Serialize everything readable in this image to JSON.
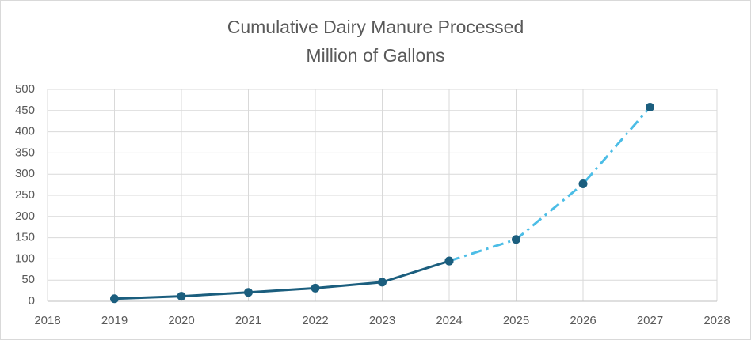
{
  "chart_data": {
    "type": "line",
    "title": "Cumulative Dairy Manure Processed",
    "subtitle": "Million of Gallons",
    "series": [
      {
        "x": [
          2019,
          2020,
          2021,
          2022,
          2023,
          2024
        ],
        "values": [
          6,
          12,
          21,
          31,
          45,
          95
        ],
        "color": "#1b5e7e",
        "marker_color": "#1b5e7e",
        "dash": "solid"
      },
      {
        "x": [
          2024,
          2025,
          2026,
          2027
        ],
        "values": [
          95,
          146,
          277,
          458
        ],
        "color": "#4cbde6",
        "marker_color": "#1b5e7e",
        "dash": "dash-dot"
      }
    ],
    "xlim": [
      2018,
      2028
    ],
    "xticks": [
      2018,
      2019,
      2020,
      2021,
      2022,
      2023,
      2024,
      2025,
      2026,
      2027,
      2028
    ],
    "ylim": [
      0,
      500
    ],
    "yticks": [
      0,
      50,
      100,
      150,
      200,
      250,
      300,
      350,
      400,
      450,
      500
    ],
    "grid": true
  }
}
